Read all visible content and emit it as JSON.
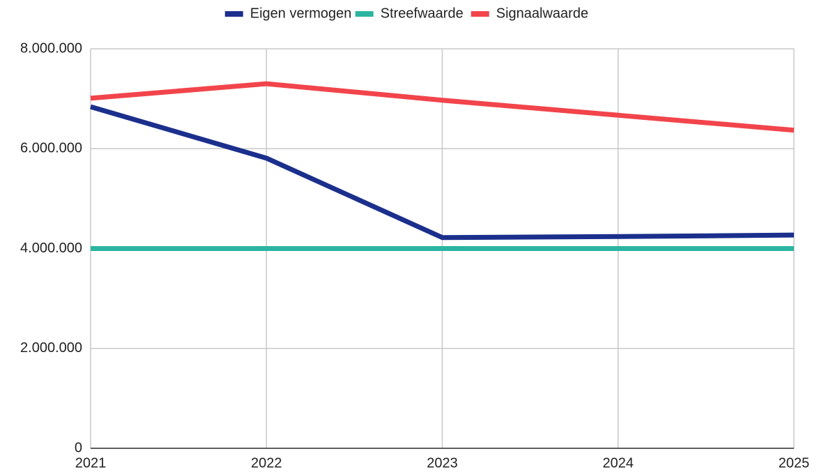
{
  "chart_data": {
    "type": "line",
    "x": [
      2021,
      2022,
      2023,
      2024,
      2025
    ],
    "xlim": [
      2021,
      2025
    ],
    "xticks": [
      2021,
      2022,
      2023,
      2024,
      2025
    ],
    "ylim": [
      0,
      8000000
    ],
    "yticks": [
      0,
      {
        "value": 2000000,
        "label": "2.000.000"
      },
      {
        "value": 4000000,
        "label": "4.000.000"
      },
      {
        "value": 6000000,
        "label": "6.000.000"
      },
      {
        "value": 8000000,
        "label": "8.000.000"
      }
    ],
    "grid": true,
    "legend": "top",
    "series": [
      {
        "name": "Eigen vermogen",
        "color": "#1b2f8c",
        "values": [
          6840000,
          5810000,
          4220000,
          4240000,
          4270000
        ]
      },
      {
        "name": "Streefwaarde",
        "color": "#2bb5a0",
        "values": [
          4000000,
          4000000,
          4000000,
          4000000,
          4000000
        ]
      },
      {
        "name": "Signaalwaarde",
        "color": "#f2444b",
        "values": [
          7010000,
          7300000,
          6970000,
          6670000,
          6370000
        ]
      }
    ]
  }
}
